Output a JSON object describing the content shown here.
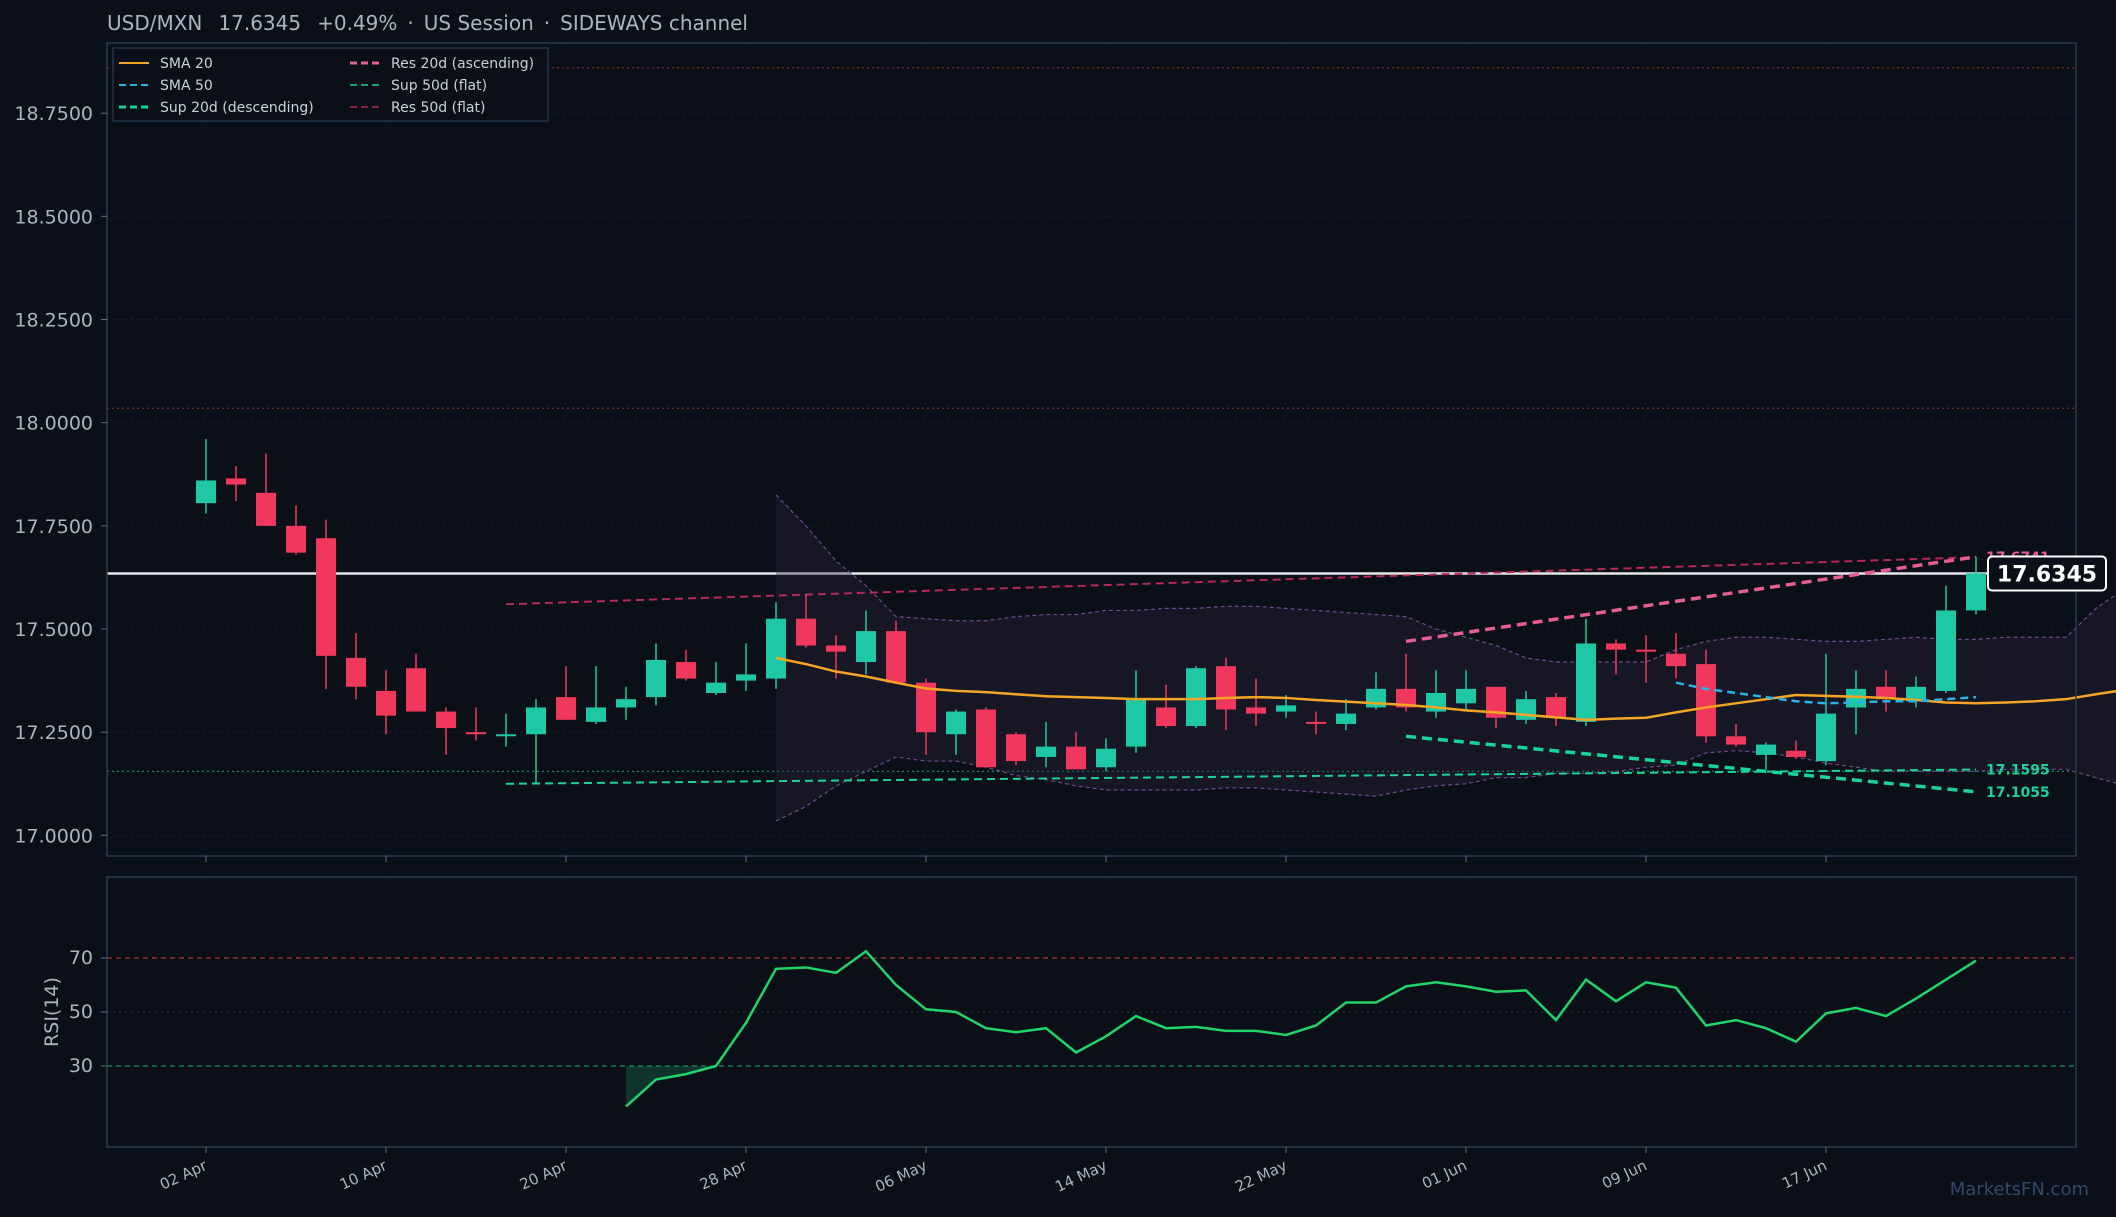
{
  "header": {
    "pair": "USD/MXN",
    "price": "17.6345",
    "change": "+0.49%",
    "sep1": "·",
    "session": "US Session",
    "sep2": "·",
    "regime": "SIDEWAYS channel"
  },
  "watermark": "MarketsFN.com",
  "colors": {
    "background": "#0b0f17",
    "panel_border": "#2a3a52",
    "up": "#1ec8a5",
    "down": "#f0385c",
    "sma20": "#f5a524",
    "sma50": "#2bb3e6",
    "support": "#19d39a",
    "resistance": "#e35d9b",
    "rsi": "#21d46a",
    "price_line": "#ffffff"
  },
  "chart_data": [
    {
      "type": "candlestick",
      "title": "USD/MXN 17.6345 +0.49% · US Session · SIDEWAYS channel",
      "ylim": [
        16.95,
        18.92
      ],
      "y_ticks": [
        "17.0000",
        "17.2500",
        "17.5000",
        "17.7500",
        "18.0000",
        "18.2500",
        "18.5000",
        "18.7500"
      ],
      "x_ticks": [
        "02 Apr",
        "10 Apr",
        "20 Apr",
        "28 Apr",
        "06 May",
        "14 May",
        "22 May",
        "01 Jun",
        "09 Jun",
        "17 Jun"
      ],
      "x_tick_index": [
        0,
        6,
        12,
        18,
        24,
        30,
        36,
        42,
        48,
        54
      ],
      "grid": true,
      "legend": {
        "placement": "top-left",
        "entries": [
          {
            "label": "SMA 20",
            "key": "sma20",
            "style": "solid"
          },
          {
            "label": "SMA 50",
            "key": "sma50",
            "style": "dashed"
          },
          {
            "label": "Sup 20d (descending)",
            "key": "support",
            "style": "dashed-bold"
          },
          {
            "label": "Res 20d (ascending)",
            "key": "resistance",
            "style": "dashed-bold"
          },
          {
            "label": "Sup 50d (flat)",
            "key": "support",
            "style": "dashed"
          },
          {
            "label": "Res 50d (flat)",
            "key": "resistance_dim",
            "style": "dashed"
          }
        ]
      },
      "last_price": 17.6345,
      "last_price_label": "17.6345",
      "level_labels": [
        {
          "text": "17.6741",
          "value": 17.6741,
          "key": "resistance"
        },
        {
          "text": "17.1595",
          "value": 17.1595,
          "key": "support"
        },
        {
          "text": "17.1055",
          "value": 17.1055,
          "key": "support"
        }
      ],
      "horizontal_levels": [
        18.86,
        18.035,
        17.155
      ],
      "candles": [
        {
          "o": 17.805,
          "h": 17.96,
          "l": 17.78,
          "c": 17.86
        },
        {
          "o": 17.865,
          "h": 17.895,
          "l": 17.81,
          "c": 17.85
        },
        {
          "o": 17.83,
          "h": 17.925,
          "l": 17.75,
          "c": 17.75
        },
        {
          "o": 17.75,
          "h": 17.8,
          "l": 17.68,
          "c": 17.685
        },
        {
          "o": 17.72,
          "h": 17.765,
          "l": 17.355,
          "c": 17.435
        },
        {
          "o": 17.43,
          "h": 17.49,
          "l": 17.33,
          "c": 17.36
        },
        {
          "o": 17.35,
          "h": 17.4,
          "l": 17.245,
          "c": 17.29
        },
        {
          "o": 17.405,
          "h": 17.44,
          "l": 17.3,
          "c": 17.3
        },
        {
          "o": 17.3,
          "h": 17.31,
          "l": 17.195,
          "c": 17.26
        },
        {
          "o": 17.25,
          "h": 17.31,
          "l": 17.23,
          "c": 17.245
        },
        {
          "o": 17.245,
          "h": 17.295,
          "l": 17.215,
          "c": 17.245
        },
        {
          "o": 17.245,
          "h": 17.33,
          "l": 17.125,
          "c": 17.31
        },
        {
          "o": 17.335,
          "h": 17.41,
          "l": 17.28,
          "c": 17.28
        },
        {
          "o": 17.275,
          "h": 17.41,
          "l": 17.27,
          "c": 17.31
        },
        {
          "o": 17.31,
          "h": 17.36,
          "l": 17.28,
          "c": 17.33
        },
        {
          "o": 17.335,
          "h": 17.465,
          "l": 17.315,
          "c": 17.425
        },
        {
          "o": 17.42,
          "h": 17.45,
          "l": 17.375,
          "c": 17.38
        },
        {
          "o": 17.345,
          "h": 17.42,
          "l": 17.34,
          "c": 17.37
        },
        {
          "o": 17.375,
          "h": 17.465,
          "l": 17.35,
          "c": 17.39
        },
        {
          "o": 17.38,
          "h": 17.565,
          "l": 17.355,
          "c": 17.525
        },
        {
          "o": 17.525,
          "h": 17.585,
          "l": 17.455,
          "c": 17.46
        },
        {
          "o": 17.46,
          "h": 17.485,
          "l": 17.38,
          "c": 17.445
        },
        {
          "o": 17.42,
          "h": 17.545,
          "l": 17.39,
          "c": 17.495
        },
        {
          "o": 17.495,
          "h": 17.52,
          "l": 17.37,
          "c": 17.37
        },
        {
          "o": 17.37,
          "h": 17.38,
          "l": 17.195,
          "c": 17.25
        },
        {
          "o": 17.245,
          "h": 17.305,
          "l": 17.195,
          "c": 17.3
        },
        {
          "o": 17.305,
          "h": 17.31,
          "l": 17.165,
          "c": 17.165
        },
        {
          "o": 17.245,
          "h": 17.25,
          "l": 17.17,
          "c": 17.18
        },
        {
          "o": 17.19,
          "h": 17.275,
          "l": 17.165,
          "c": 17.215
        },
        {
          "o": 17.215,
          "h": 17.25,
          "l": 17.16,
          "c": 17.16
        },
        {
          "o": 17.165,
          "h": 17.235,
          "l": 17.155,
          "c": 17.21
        },
        {
          "o": 17.215,
          "h": 17.4,
          "l": 17.2,
          "c": 17.33
        },
        {
          "o": 17.31,
          "h": 17.365,
          "l": 17.26,
          "c": 17.265
        },
        {
          "o": 17.265,
          "h": 17.41,
          "l": 17.26,
          "c": 17.405
        },
        {
          "o": 17.41,
          "h": 17.43,
          "l": 17.255,
          "c": 17.305
        },
        {
          "o": 17.31,
          "h": 17.38,
          "l": 17.265,
          "c": 17.295
        },
        {
          "o": 17.3,
          "h": 17.34,
          "l": 17.285,
          "c": 17.315
        },
        {
          "o": 17.275,
          "h": 17.3,
          "l": 17.245,
          "c": 17.27
        },
        {
          "o": 17.27,
          "h": 17.33,
          "l": 17.255,
          "c": 17.295
        },
        {
          "o": 17.31,
          "h": 17.395,
          "l": 17.305,
          "c": 17.355
        },
        {
          "o": 17.355,
          "h": 17.44,
          "l": 17.3,
          "c": 17.31
        },
        {
          "o": 17.3,
          "h": 17.4,
          "l": 17.285,
          "c": 17.345
        },
        {
          "o": 17.32,
          "h": 17.4,
          "l": 17.305,
          "c": 17.355
        },
        {
          "o": 17.36,
          "h": 17.36,
          "l": 17.26,
          "c": 17.285
        },
        {
          "o": 17.28,
          "h": 17.35,
          "l": 17.27,
          "c": 17.33
        },
        {
          "o": 17.335,
          "h": 17.345,
          "l": 17.265,
          "c": 17.285
        },
        {
          "o": 17.275,
          "h": 17.525,
          "l": 17.265,
          "c": 17.465
        },
        {
          "o": 17.465,
          "h": 17.475,
          "l": 17.39,
          "c": 17.45
        },
        {
          "o": 17.45,
          "h": 17.485,
          "l": 17.37,
          "c": 17.445
        },
        {
          "o": 17.44,
          "h": 17.49,
          "l": 17.38,
          "c": 17.41
        },
        {
          "o": 17.415,
          "h": 17.45,
          "l": 17.225,
          "c": 17.24
        },
        {
          "o": 17.24,
          "h": 17.27,
          "l": 17.215,
          "c": 17.22
        },
        {
          "o": 17.195,
          "h": 17.225,
          "l": 17.16,
          "c": 17.22
        },
        {
          "o": 17.205,
          "h": 17.23,
          "l": 17.185,
          "c": 17.19
        },
        {
          "o": 17.18,
          "h": 17.44,
          "l": 17.17,
          "c": 17.295
        },
        {
          "o": 17.31,
          "h": 17.4,
          "l": 17.245,
          "c": 17.355
        },
        {
          "o": 17.36,
          "h": 17.4,
          "l": 17.3,
          "c": 17.33
        },
        {
          "o": 17.325,
          "h": 17.385,
          "l": 17.31,
          "c": 17.36
        },
        {
          "o": 17.35,
          "h": 17.605,
          "l": 17.345,
          "c": 17.545
        },
        {
          "o": 17.545,
          "h": 17.675,
          "l": 17.535,
          "c": 17.635
        }
      ],
      "sma20": {
        "start": 19,
        "values": [
          17.43,
          17.415,
          17.397,
          17.385,
          17.37,
          17.356,
          17.35,
          17.347,
          17.342,
          17.337,
          17.335,
          17.333,
          17.33,
          17.33,
          17.33,
          17.333,
          17.335,
          17.333,
          17.328,
          17.324,
          17.32,
          17.316,
          17.31,
          17.303,
          17.298,
          17.292,
          17.286,
          17.28,
          17.283,
          17.285,
          17.298,
          17.31,
          17.32,
          17.33,
          17.34,
          17.338,
          17.336,
          17.333,
          17.328,
          17.322,
          17.32,
          17.322,
          17.325,
          17.33,
          17.342,
          17.353
        ]
      },
      "sma50": {
        "start": 49,
        "values": [
          17.37,
          17.355,
          17.345,
          17.335,
          17.325,
          17.32,
          17.322,
          17.325,
          17.325,
          17.33,
          17.335
        ]
      },
      "bollinger": {
        "start": 19,
        "upper": [
          17.825,
          17.75,
          17.665,
          17.605,
          17.53,
          17.525,
          17.52,
          17.52,
          17.53,
          17.535,
          17.535,
          17.545,
          17.545,
          17.55,
          17.55,
          17.555,
          17.555,
          17.55,
          17.545,
          17.54,
          17.535,
          17.53,
          17.5,
          17.48,
          17.46,
          17.43,
          17.42,
          17.42,
          17.42,
          17.42,
          17.45,
          17.47,
          17.48,
          17.48,
          17.475,
          17.47,
          17.47,
          17.475,
          17.48,
          17.475,
          17.475,
          17.48,
          17.48,
          17.48,
          17.55,
          17.6
        ],
        "lower": [
          17.035,
          17.07,
          17.12,
          17.155,
          17.19,
          17.18,
          17.18,
          17.165,
          17.145,
          17.135,
          17.12,
          17.11,
          17.11,
          17.11,
          17.11,
          17.115,
          17.115,
          17.11,
          17.105,
          17.1,
          17.095,
          17.11,
          17.12,
          17.125,
          17.14,
          17.14,
          17.15,
          17.15,
          17.155,
          17.165,
          17.17,
          17.2,
          17.205,
          17.2,
          17.19,
          17.175,
          17.165,
          17.155,
          17.155,
          17.155,
          17.155,
          17.16,
          17.16,
          17.16,
          17.14,
          17.12
        ]
      },
      "trendlines": [
        {
          "name": "Res 50d (flat)",
          "key": "resistance_dim",
          "style": "dashed",
          "from": [
            10,
            17.56
          ],
          "to": [
            59,
            17.6741
          ]
        },
        {
          "name": "Sup 50d (flat)",
          "key": "support",
          "style": "dashed",
          "from": [
            10,
            17.125
          ],
          "to": [
            59,
            17.1595
          ]
        },
        {
          "name": "Res 20d (ascending)",
          "key": "resistance",
          "style": "dashed-bold",
          "from": [
            40,
            17.47
          ],
          "to": [
            59,
            17.675
          ]
        },
        {
          "name": "Sup 20d (descending)",
          "key": "support",
          "style": "dashed-bold",
          "from": [
            40,
            17.24
          ],
          "to": [
            59,
            17.1055
          ]
        }
      ]
    },
    {
      "type": "line",
      "ylabel": "RSI(14)",
      "ylim": [
        0,
        100
      ],
      "y_ticks": [
        "30",
        "50",
        "70"
      ],
      "overbought": 70,
      "oversold": 30,
      "start": 14,
      "values": [
        15,
        25,
        27,
        30,
        46,
        66,
        66.5,
        64.5,
        72.5,
        60,
        51,
        50,
        44,
        42.5,
        44,
        35,
        41,
        48.5,
        44,
        44.5,
        43,
        43,
        41.5,
        45,
        53.5,
        53.5,
        59.5,
        61,
        59.5,
        57.5,
        58,
        47,
        62,
        54,
        61,
        59,
        45,
        47,
        44,
        39,
        49.5,
        51.5,
        48.5,
        55,
        62,
        69
      ]
    }
  ]
}
